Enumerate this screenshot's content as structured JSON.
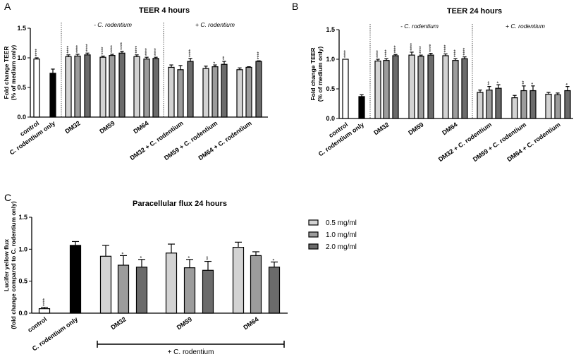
{
  "colors": {
    "control": "#ffffff",
    "infected": "#000000",
    "0.5 mg/ml": "#d3d3d3",
    "1.0 mg/ml": "#9c9c9c",
    "2.0 mg/ml": "#6b6b6b",
    "stroke": "#000000"
  },
  "chart_data": [
    {
      "panel": "A",
      "type": "bar",
      "title": "TEER 4 hours",
      "ylabel": [
        "Fold change TEER",
        "(% of medium only)"
      ],
      "ylim": [
        0,
        1.5
      ],
      "yticks": [
        "0.0",
        "0.5",
        "1.0",
        "1.5"
      ],
      "group_headers": [
        "- C. rodentium",
        "+ C. rodentium"
      ],
      "categories": [
        "control",
        "C. rodentium only",
        "DM32",
        "DM59",
        "DM64",
        "DM32 + C. rodentium",
        "DM59 + C. rodentium",
        "DM64 + C. rodentium"
      ],
      "groups": [
        {
          "bars": [
            {
              "fill": "control",
              "value": 0.98,
              "error": 0.02,
              "sig": "****"
            }
          ]
        },
        {
          "bars": [
            {
              "fill": "infected",
              "value": 0.74,
              "error": 0.07,
              "sig": ""
            }
          ]
        },
        {
          "bars": [
            {
              "fill": "0.5 mg/ml",
              "value": 1.02,
              "error": 0.03,
              "sig": "****"
            },
            {
              "fill": "1.0 mg/ml",
              "value": 1.03,
              "error": 0.03,
              "sig": "****"
            },
            {
              "fill": "2.0 mg/ml",
              "value": 1.05,
              "error": 0.03,
              "sig": "****"
            }
          ]
        },
        {
          "bars": [
            {
              "fill": "0.5 mg/ml",
              "value": 1.01,
              "error": 0.02,
              "sig": "****"
            },
            {
              "fill": "1.0 mg/ml",
              "value": 1.04,
              "error": 0.02,
              "sig": "****"
            },
            {
              "fill": "2.0 mg/ml",
              "value": 1.08,
              "error": 0.03,
              "sig": "****"
            }
          ]
        },
        {
          "bars": [
            {
              "fill": "0.5 mg/ml",
              "value": 1.02,
              "error": 0.03,
              "sig": "****"
            },
            {
              "fill": "1.0 mg/ml",
              "value": 0.98,
              "error": 0.03,
              "sig": "****"
            },
            {
              "fill": "2.0 mg/ml",
              "value": 0.99,
              "error": 0.02,
              "sig": "****"
            }
          ]
        },
        {
          "bars": [
            {
              "fill": "0.5 mg/ml",
              "value": 0.84,
              "error": 0.04,
              "sig": ""
            },
            {
              "fill": "1.0 mg/ml",
              "value": 0.8,
              "error": 0.07,
              "sig": ""
            },
            {
              "fill": "2.0 mg/ml",
              "value": 0.94,
              "error": 0.05,
              "sig": "****"
            }
          ]
        },
        {
          "bars": [
            {
              "fill": "0.5 mg/ml",
              "value": 0.82,
              "error": 0.04,
              "sig": ""
            },
            {
              "fill": "1.0 mg/ml",
              "value": 0.85,
              "error": 0.03,
              "sig": "*"
            },
            {
              "fill": "2.0 mg/ml",
              "value": 0.89,
              "error": 0.05,
              "sig": "**"
            }
          ]
        },
        {
          "bars": [
            {
              "fill": "0.5 mg/ml",
              "value": 0.8,
              "error": 0.03,
              "sig": ""
            },
            {
              "fill": "1.0 mg/ml",
              "value": 0.84,
              "error": 0.01,
              "sig": ""
            },
            {
              "fill": "2.0 mg/ml",
              "value": 0.94,
              "error": 0.01,
              "sig": "****"
            }
          ]
        }
      ]
    },
    {
      "panel": "B",
      "type": "bar",
      "title": "TEER 24 hours",
      "ylabel": [
        "Fold change TEER",
        "(% of medium only)"
      ],
      "ylim": [
        0,
        1.5
      ],
      "yticks": [
        "0.0",
        "0.5",
        "1.0",
        "1.5"
      ],
      "group_headers": [
        "- C. rodentium",
        "+ C. rodentium"
      ],
      "categories": [
        "control",
        "C. rodentium only",
        "DM32",
        "DM59",
        "DM64",
        "DM32 + C. rodentium",
        "DM59 + C. rodentium",
        "DM64 + C. rodentium"
      ],
      "groups": [
        {
          "bars": [
            {
              "fill": "control",
              "value": 1.0,
              "error": 0.0,
              "sig": "****"
            }
          ]
        },
        {
          "bars": [
            {
              "fill": "infected",
              "value": 0.37,
              "error": 0.03,
              "sig": ""
            }
          ]
        },
        {
          "bars": [
            {
              "fill": "0.5 mg/ml",
              "value": 0.97,
              "error": 0.03,
              "sig": "****"
            },
            {
              "fill": "1.0 mg/ml",
              "value": 0.98,
              "error": 0.03,
              "sig": "****"
            },
            {
              "fill": "2.0 mg/ml",
              "value": 1.06,
              "error": 0.02,
              "sig": "****"
            }
          ]
        },
        {
          "bars": [
            {
              "fill": "0.5 mg/ml",
              "value": 1.07,
              "error": 0.05,
              "sig": "****"
            },
            {
              "fill": "1.0 mg/ml",
              "value": 1.05,
              "error": 0.02,
              "sig": "****"
            },
            {
              "fill": "2.0 mg/ml",
              "value": 1.07,
              "error": 0.03,
              "sig": "****"
            }
          ]
        },
        {
          "bars": [
            {
              "fill": "0.5 mg/ml",
              "value": 1.06,
              "error": 0.03,
              "sig": "****"
            },
            {
              "fill": "1.0 mg/ml",
              "value": 0.98,
              "error": 0.03,
              "sig": "****"
            },
            {
              "fill": "2.0 mg/ml",
              "value": 1.01,
              "error": 0.03,
              "sig": "****"
            }
          ]
        },
        {
          "bars": [
            {
              "fill": "0.5 mg/ml",
              "value": 0.44,
              "error": 0.04,
              "sig": ""
            },
            {
              "fill": "1.0 mg/ml",
              "value": 0.48,
              "error": 0.06,
              "sig": "**"
            },
            {
              "fill": "2.0 mg/ml",
              "value": 0.51,
              "error": 0.06,
              "sig": "*"
            }
          ]
        },
        {
          "bars": [
            {
              "fill": "0.5 mg/ml",
              "value": 0.35,
              "error": 0.04,
              "sig": ""
            },
            {
              "fill": "1.0 mg/ml",
              "value": 0.47,
              "error": 0.08,
              "sig": "**"
            },
            {
              "fill": "2.0 mg/ml",
              "value": 0.47,
              "error": 0.08,
              "sig": "*"
            }
          ]
        },
        {
          "bars": [
            {
              "fill": "0.5 mg/ml",
              "value": 0.41,
              "error": 0.03,
              "sig": ""
            },
            {
              "fill": "1.0 mg/ml",
              "value": 0.4,
              "error": 0.03,
              "sig": ""
            },
            {
              "fill": "2.0 mg/ml",
              "value": 0.47,
              "error": 0.07,
              "sig": "*"
            }
          ]
        }
      ]
    },
    {
      "panel": "C",
      "type": "bar",
      "title": "Paracellular flux  24 hours",
      "ylabel": [
        "Lucifer yellow flux",
        "(fold change compared to C. rodentium only)"
      ],
      "ylim": [
        0,
        1.5
      ],
      "yticks": [
        "0.0",
        "0.5",
        "1.0",
        "1.5"
      ],
      "categories": [
        "control",
        "C. rodentium only",
        "DM32",
        "DM59",
        "DM64"
      ],
      "bracket_label": "+ C. rodentium",
      "legend": {
        "position": "right",
        "entries": [
          "0.5 mg/ml",
          "1.0 mg/ml",
          "2.0 mg/ml"
        ]
      },
      "groups": [
        {
          "bars": [
            {
              "fill": "control",
              "value": 0.07,
              "error": 0.02,
              "sig": "****"
            }
          ]
        },
        {
          "bars": [
            {
              "fill": "infected",
              "value": 1.06,
              "error": 0.06,
              "sig": ""
            }
          ]
        },
        {
          "bars": [
            {
              "fill": "0.5 mg/ml",
              "value": 0.89,
              "error": 0.17,
              "sig": ""
            },
            {
              "fill": "1.0 mg/ml",
              "value": 0.75,
              "error": 0.15,
              "sig": "*"
            },
            {
              "fill": "2.0 mg/ml",
              "value": 0.72,
              "error": 0.12,
              "sig": "*"
            }
          ]
        },
        {
          "bars": [
            {
              "fill": "0.5 mg/ml",
              "value": 0.94,
              "error": 0.14,
              "sig": ""
            },
            {
              "fill": "1.0 mg/ml",
              "value": 0.71,
              "error": 0.13,
              "sig": "*"
            },
            {
              "fill": "2.0 mg/ml",
              "value": 0.67,
              "error": 0.14,
              "sig": "**"
            }
          ]
        },
        {
          "bars": [
            {
              "fill": "0.5 mg/ml",
              "value": 1.03,
              "error": 0.08,
              "sig": ""
            },
            {
              "fill": "1.0 mg/ml",
              "value": 0.9,
              "error": 0.06,
              "sig": ""
            },
            {
              "fill": "2.0 mg/ml",
              "value": 0.72,
              "error": 0.08,
              "sig": "*"
            }
          ]
        }
      ]
    }
  ]
}
